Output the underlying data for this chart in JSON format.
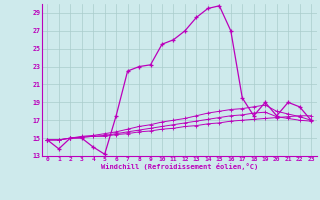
{
  "title": "Windchill (Refroidissement éolien,°C)",
  "background_color": "#ceeaec",
  "line_color": "#bb00bb",
  "grid_color": "#aacccc",
  "xlim": [
    -0.5,
    23.5
  ],
  "ylim": [
    13,
    30
  ],
  "xticks": [
    0,
    1,
    2,
    3,
    4,
    5,
    6,
    7,
    8,
    9,
    10,
    11,
    12,
    13,
    14,
    15,
    16,
    17,
    18,
    19,
    20,
    21,
    22,
    23
  ],
  "yticks": [
    13,
    15,
    17,
    19,
    21,
    23,
    25,
    27,
    29
  ],
  "series_main": [
    14.8,
    13.8,
    15.0,
    15.0,
    14.0,
    13.2,
    17.5,
    22.5,
    23.0,
    23.2,
    25.5,
    26.0,
    27.0,
    28.5,
    29.5,
    29.8,
    27.0,
    19.5,
    17.5,
    19.0,
    17.5,
    19.0,
    18.5,
    17.0
  ],
  "series_flat1": [
    14.8,
    14.8,
    15.0,
    15.1,
    15.2,
    15.2,
    15.4,
    15.5,
    15.7,
    15.8,
    16.0,
    16.1,
    16.3,
    16.4,
    16.6,
    16.7,
    16.9,
    17.0,
    17.1,
    17.2,
    17.3,
    17.4,
    17.5,
    17.5
  ],
  "series_flat2": [
    14.8,
    14.8,
    15.0,
    15.1,
    15.2,
    15.3,
    15.5,
    15.7,
    15.9,
    16.1,
    16.3,
    16.5,
    16.7,
    16.9,
    17.1,
    17.3,
    17.5,
    17.6,
    17.8,
    17.9,
    17.4,
    17.2,
    17.0,
    16.9
  ],
  "series_flat3": [
    14.8,
    14.8,
    15.0,
    15.2,
    15.3,
    15.5,
    15.7,
    16.0,
    16.3,
    16.5,
    16.8,
    17.0,
    17.2,
    17.5,
    17.8,
    18.0,
    18.2,
    18.3,
    18.5,
    18.7,
    18.0,
    17.7,
    17.4,
    17.0
  ]
}
